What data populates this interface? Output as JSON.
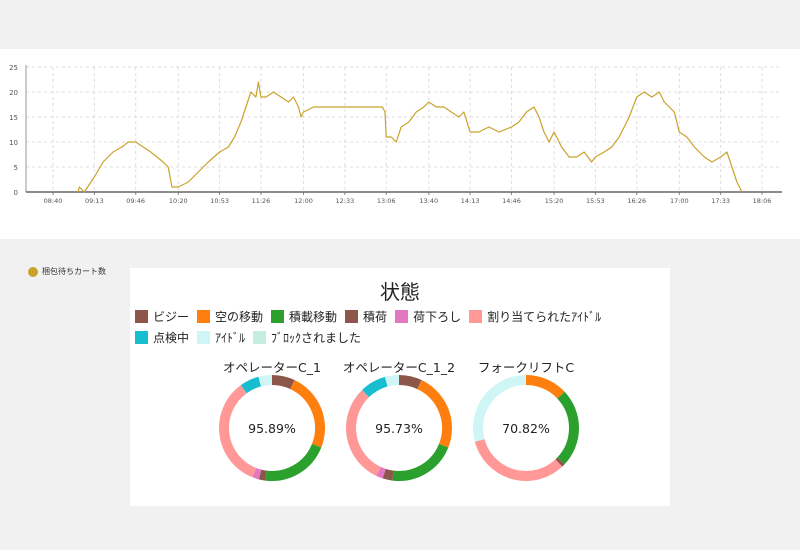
{
  "chart_data": [
    {
      "type": "line",
      "title": "",
      "xlabel": "",
      "ylabel": "",
      "ylim": [
        0,
        25
      ],
      "y_ticks": [
        "0",
        "5",
        "10",
        "15",
        "20",
        "25"
      ],
      "x_ticks": [
        "08:40",
        "09:13",
        "09:46",
        "10:20",
        "10:53",
        "11:26",
        "12:00",
        "12:33",
        "13:06",
        "13:40",
        "14:13",
        "14:46",
        "15:20",
        "15:53",
        "16:26",
        "17:00",
        "17:33",
        "18:06"
      ],
      "grid": true,
      "legend_position": "bottom-left",
      "series": [
        {
          "name": "梱包待ちカート数",
          "color": "#caa22c",
          "x": [
            "09:00",
            "09:01",
            "09:05",
            "09:13",
            "09:20",
            "09:28",
            "09:35",
            "09:40",
            "09:46",
            "09:52",
            "09:58",
            "10:03",
            "10:08",
            "10:12",
            "10:15",
            "10:20",
            "10:28",
            "10:36",
            "10:44",
            "10:53",
            "11:00",
            "11:05",
            "11:10",
            "11:14",
            "11:18",
            "11:22",
            "11:24",
            "11:26",
            "11:30",
            "11:36",
            "11:42",
            "11:48",
            "11:52",
            "11:56",
            "11:58",
            "12:00",
            "12:08",
            "12:20",
            "12:33",
            "12:50",
            "13:03",
            "13:05",
            "13:06",
            "13:10",
            "13:14",
            "13:18",
            "13:24",
            "13:30",
            "13:36",
            "13:40",
            "13:46",
            "13:52",
            "13:58",
            "14:04",
            "14:08",
            "14:13",
            "14:20",
            "14:28",
            "14:36",
            "14:46",
            "14:52",
            "14:58",
            "15:04",
            "15:08",
            "15:12",
            "15:16",
            "15:20",
            "15:26",
            "15:32",
            "15:38",
            "15:44",
            "15:50",
            "15:53",
            "16:00",
            "16:06",
            "16:12",
            "16:16",
            "16:20",
            "16:26",
            "16:32",
            "16:38",
            "16:44",
            "16:48",
            "16:52",
            "16:56",
            "17:00",
            "17:06",
            "17:12",
            "17:20",
            "17:26",
            "17:33",
            "17:38",
            "17:42",
            "17:46",
            "17:50"
          ],
          "values": [
            0,
            1,
            0,
            3,
            6,
            8,
            9,
            10,
            10,
            9,
            8,
            7,
            6,
            5,
            1,
            1,
            2,
            4,
            6,
            8,
            9,
            11,
            14,
            17,
            20,
            19,
            22,
            19,
            19,
            20,
            19,
            18,
            19,
            17,
            15,
            16,
            17,
            17,
            17,
            17,
            17,
            16,
            11,
            11,
            10,
            13,
            14,
            16,
            17,
            18,
            17,
            17,
            16,
            15,
            16,
            12,
            12,
            13,
            12,
            13,
            14,
            16,
            17,
            15,
            12,
            10,
            12,
            9,
            7,
            7,
            8,
            6,
            7,
            8,
            9,
            11,
            13,
            15,
            19,
            20,
            19,
            20,
            18,
            17,
            16,
            12,
            11,
            9,
            7,
            6,
            7,
            8,
            5,
            2,
            0
          ]
        }
      ]
    },
    {
      "type": "pie",
      "title": "状態",
      "legend_position": "top",
      "categories": [
        "ビジー",
        "空の移動",
        "積載移動",
        "積荷",
        "荷下ろし",
        "割り当てられたｱｲﾄﾞﾙ",
        "点検中",
        "ｱｲﾄﾞﾙ",
        "ﾌﾞﾛｯｸされました"
      ],
      "colors": [
        "#8c564b",
        "#ff7f0e",
        "#2ca02c",
        "#8c564b",
        "#e377c2",
        "#ff9896",
        "#17becf",
        "#cff5f5",
        "#c7ece0"
      ],
      "series": [
        {
          "name": "オペレーターC_1",
          "label": "95.89%",
          "values": [
            7.0,
            24.0,
            21.0,
            2.0,
            2.0,
            34.0,
            5.89,
            4.11,
            0
          ]
        },
        {
          "name": "オペレーターC_1_2",
          "label": "95.73%",
          "values": [
            7.0,
            24.0,
            21.0,
            3.0,
            2.0,
            30.73,
            8.0,
            4.27,
            0
          ]
        },
        {
          "name": "フォークリフトC",
          "label": "70.82%",
          "values": [
            0,
            13.0,
            24.0,
            1.0,
            0,
            32.82,
            0,
            29.18,
            0
          ]
        }
      ]
    }
  ]
}
